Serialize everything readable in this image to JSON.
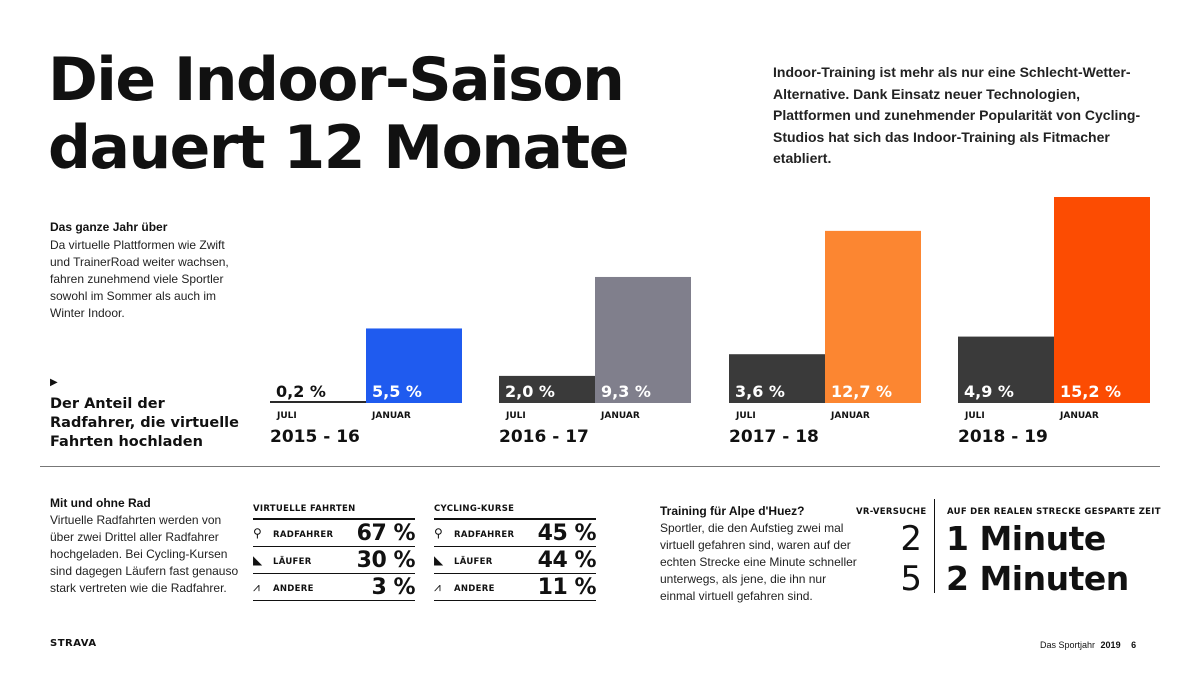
{
  "headline": {
    "line1": "Die Indoor-Saison",
    "line2": "dauert 12 Monate"
  },
  "intro": "Indoor-Training ist mehr als nur eine Schlecht-Wetter-Alternative. Dank Einsatz neuer Technologien, Plattformen und zunehmender Popularität von Cycling-Studios hat sich das Indoor-Training als Fitmacher etabliert.",
  "aside": {
    "title": "Das ganze Jahr über",
    "text": "Da virtuelle Plattformen wie Zwift und TrainerRoad weiter wachsen, fahren zunehmend viele Sportler sowohl im Sommer als auch im Winter Indoor."
  },
  "chart_caption": {
    "arrow": "▶",
    "text": "Der Anteil der Radfahrer, die virtuelle Fahrten hochladen"
  },
  "chart_data": {
    "type": "bar",
    "categories": [
      "2015 - 16",
      "2016 - 17",
      "2017 - 18",
      "2018 - 19"
    ],
    "bar_labels": [
      "JULI",
      "JANUAR"
    ],
    "series": [
      {
        "values": [
          0.2,
          2.0,
          3.6,
          4.9
        ],
        "labels": [
          "0,2 %",
          "2,0 %",
          "3,6 %",
          "4,9 %"
        ]
      },
      {
        "values": [
          5.5,
          9.3,
          12.7,
          15.2
        ],
        "labels": [
          "5,5 %",
          "9,3 %",
          "12,7 %",
          "15,2 %"
        ]
      }
    ],
    "colors": {
      "juli": [
        "#2a2a2a",
        "#3a3a3a",
        "#3a3a3a",
        "#3a3a3a"
      ],
      "januar": [
        "#1f5bef",
        "#807f8c",
        "#fc8631",
        "#fc4c02"
      ]
    },
    "ylim": [
      0,
      15.2
    ]
  },
  "mit_ohne": {
    "title": "Mit und ohne Rad",
    "text": "Virtuelle Radfahrten werden von über zwei Drittel aller Radfahrer hochgeladen. Bei Cycling-Kursen sind dagegen Läufern fast genauso stark vertreten wie die Radfahrer."
  },
  "tables": [
    {
      "header": "VIRTUELLE FAHRTEN",
      "rows": [
        {
          "icon": "bicycle-icon",
          "glyph": "⚲",
          "label": "RADFAHRER",
          "value": "67 %"
        },
        {
          "icon": "running-shoe-icon",
          "glyph": "◣",
          "label": "LÄUFER",
          "value": "30 %"
        },
        {
          "icon": "activity-pulse-icon",
          "glyph": "⩘",
          "label": "ANDERE",
          "value": "3 %"
        }
      ]
    },
    {
      "header": "CYCLING-KURSE",
      "rows": [
        {
          "icon": "bicycle-icon",
          "glyph": "⚲",
          "label": "RADFAHRER",
          "value": "45 %"
        },
        {
          "icon": "running-shoe-icon",
          "glyph": "◣",
          "label": "LÄUFER",
          "value": "44 %"
        },
        {
          "icon": "activity-pulse-icon",
          "glyph": "⩘",
          "label": "ANDERE",
          "value": "11 %"
        }
      ]
    }
  ],
  "alpe": {
    "title": "Training für Alpe d'Huez?",
    "text": "Sportler, die den Aufstieg zwei mal virtuell gefahren sind, waren auf der echten Strecke eine Minute schneller unterwegs, als jene, die ihn nur einmal virtuell gefahren sind."
  },
  "vr": {
    "head_left": "VR-VERSUCHE",
    "head_right": "AUF DER REALEN STRECKE GESPARTE ZEIT",
    "rows": [
      {
        "num": "2",
        "value": "1 Minute"
      },
      {
        "num": "5",
        "value": "2 Minuten"
      }
    ]
  },
  "footer": {
    "brand": "STRAVA",
    "label": "Das Sportjahr",
    "year": "2019",
    "page": "6"
  }
}
